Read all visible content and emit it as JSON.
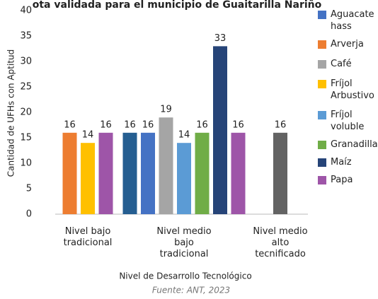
{
  "chart_data": {
    "type": "bar",
    "title": "ota validada para el municipio de Guaitarilla Nariño",
    "y_label": "Cantidad de UFHs con Aptitud",
    "x_label": "Nivel de Desarrollo Tecnológico",
    "source": "Fuente: ANT, 2023",
    "categories": [
      "Nivel bajo tradicional",
      "Nivel medio bajo tradicional",
      "Nivel medio alto tecnificado"
    ],
    "series": [
      {
        "color": "#255e91",
        "values": [
          null,
          16,
          null
        ]
      },
      {
        "name": "Aguacate hass",
        "color": "#4472c4",
        "values": [
          null,
          16,
          null
        ]
      },
      {
        "name": "Arverja",
        "color": "#ed7d31",
        "values": [
          16,
          null,
          null
        ]
      },
      {
        "name": "Café",
        "color": "#a5a5a5",
        "values": [
          null,
          19,
          null
        ]
      },
      {
        "name": "Fríjol Arbustivo",
        "color": "#ffc000",
        "values": [
          14,
          null,
          null
        ]
      },
      {
        "name": "Fríjol voluble",
        "color": "#5b9bd5",
        "values": [
          null,
          14,
          null
        ]
      },
      {
        "name": "Granadilla",
        "color": "#70ad47",
        "values": [
          null,
          16,
          null
        ]
      },
      {
        "name": "Maíz",
        "color": "#264478",
        "values": [
          null,
          33,
          null
        ]
      },
      {
        "name": "Papa",
        "color": "#9e55a8",
        "values": [
          16,
          16,
          null
        ]
      },
      {
        "color": "#636363",
        "values": [
          null,
          null,
          16
        ]
      }
    ],
    "ylim": [
      0,
      40
    ],
    "yticks": [
      0,
      5,
      10,
      15,
      20,
      25,
      30,
      35,
      40
    ],
    "grid": false,
    "legend": "right"
  }
}
